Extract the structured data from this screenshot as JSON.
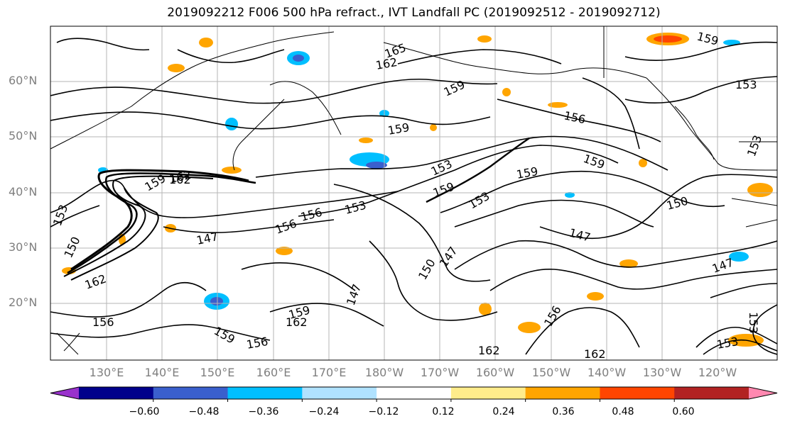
{
  "title": "2019092212 F006 500 hPa refract., IVT Landfall PC (2019092512 - 2019092712)",
  "lat_labels": [
    "60°N",
    "50°N",
    "40°N",
    "30°N",
    "20°N"
  ],
  "lon_labels": [
    "130°E",
    "140°E",
    "150°E",
    "160°E",
    "170°E",
    "180°W",
    "170°W",
    "160°W",
    "150°W",
    "140°W",
    "130°W",
    "120°W"
  ],
  "colorbar": {
    "ticks": [
      "−0.60",
      "−0.48",
      "−0.36",
      "−0.24",
      "−0.12",
      "0.12",
      "0.24",
      "0.36",
      "0.48",
      "0.60"
    ],
    "colors": [
      "#9932cc",
      "#00008b",
      "#3a5fcd",
      "#00bfff",
      "#b0e2ff",
      "#ffffff",
      "#ffec8b",
      "#ffa500",
      "#ff4500",
      "#b22222",
      "#ff88b0"
    ]
  },
  "contour_labels": [
    "165",
    "162",
    "159",
    "153",
    "156",
    "153",
    "162",
    "159",
    "159",
    "156",
    "153",
    "153",
    "159",
    "159",
    "153",
    "159",
    "150",
    "147",
    "147",
    "162",
    "159",
    "156",
    "153",
    "147",
    "150",
    "162",
    "156",
    "147",
    "150",
    "159",
    "162",
    "162",
    "156",
    "162",
    "153",
    "159",
    "153",
    "147",
    "156"
  ],
  "shading_colors": {
    "positive": "#ffa500",
    "positive_light": "#ffec8b",
    "positive_strong": "#ff4500",
    "negative": "#00bfff",
    "negative_light": "#b0e2ff",
    "negative_strong": "#3a5fcd"
  }
}
